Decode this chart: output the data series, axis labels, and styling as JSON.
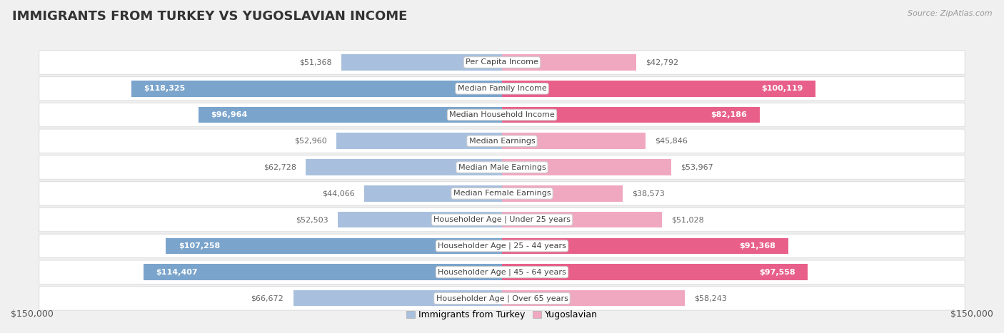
{
  "title": "IMMIGRANTS FROM TURKEY VS YUGOSLAVIAN INCOME",
  "source": "Source: ZipAtlas.com",
  "categories": [
    "Per Capita Income",
    "Median Family Income",
    "Median Household Income",
    "Median Earnings",
    "Median Male Earnings",
    "Median Female Earnings",
    "Householder Age | Under 25 years",
    "Householder Age | 25 - 44 years",
    "Householder Age | 45 - 64 years",
    "Householder Age | Over 65 years"
  ],
  "turkey_values": [
    51368,
    118325,
    96964,
    52960,
    62728,
    44066,
    52503,
    107258,
    114407,
    66672
  ],
  "yugoslavian_values": [
    42792,
    100119,
    82186,
    45846,
    53967,
    38573,
    51028,
    91368,
    97558,
    58243
  ],
  "turkey_labels": [
    "$51,368",
    "$118,325",
    "$96,964",
    "$52,960",
    "$62,728",
    "$44,066",
    "$52,503",
    "$107,258",
    "$114,407",
    "$66,672"
  ],
  "yugoslavian_labels": [
    "$42,792",
    "$100,119",
    "$82,186",
    "$45,846",
    "$53,967",
    "$38,573",
    "$51,028",
    "$91,368",
    "$97,558",
    "$58,243"
  ],
  "turkey_color_light": "#a8c0de",
  "turkey_color_dark": "#7aa4cc",
  "yugoslavian_color_light": "#f0a8c0",
  "yugoslavian_color_dark": "#e8608a",
  "turkey_large_threshold": 75000,
  "yugoslavian_large_threshold": 75000,
  "xlim": 150000,
  "background_color": "#f0f0f0",
  "row_bg_color": "#ffffff",
  "row_border_color": "#d8d8d8",
  "legend_turkey": "Immigrants from Turkey",
  "legend_yugoslavian": "Yugoslavian",
  "title_fontsize": 13,
  "label_fontsize": 8,
  "cat_fontsize": 8,
  "source_fontsize": 8
}
